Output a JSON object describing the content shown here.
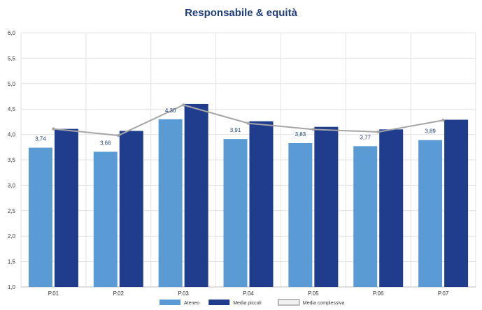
{
  "chart_data": {
    "type": "bar",
    "title": "Responsabile & equità",
    "categories": [
      "P.01",
      "P.02",
      "P.03",
      "P.04",
      "P.05",
      "P.06",
      "P.07"
    ],
    "ylim": [
      1.0,
      6.0
    ],
    "yticks": [
      "1,0",
      "1,5",
      "2,0",
      "2,5",
      "3,0",
      "3,5",
      "4,0",
      "4,5",
      "5,0",
      "5,5",
      "6,0"
    ],
    "grid": true,
    "legend_position": "bottom",
    "series": [
      {
        "name": "Ateneo",
        "kind": "bar",
        "color": "#5b9bd5",
        "values": [
          3.74,
          3.66,
          4.3,
          3.91,
          3.83,
          3.77,
          3.89
        ],
        "labels": [
          "3,74",
          "3,66",
          "4,30",
          "3,91",
          "3,83",
          "3,77",
          "3,89"
        ]
      },
      {
        "name": "Media piccoli",
        "kind": "bar",
        "color": "#1f3d8c",
        "values": [
          4.11,
          4.07,
          4.6,
          4.26,
          4.15,
          4.1,
          4.29
        ]
      },
      {
        "name": "Media complessiva",
        "kind": "line",
        "color": "#a6a6a6",
        "values": [
          4.11,
          3.98,
          4.58,
          4.22,
          4.1,
          4.05,
          4.28
        ]
      }
    ]
  }
}
